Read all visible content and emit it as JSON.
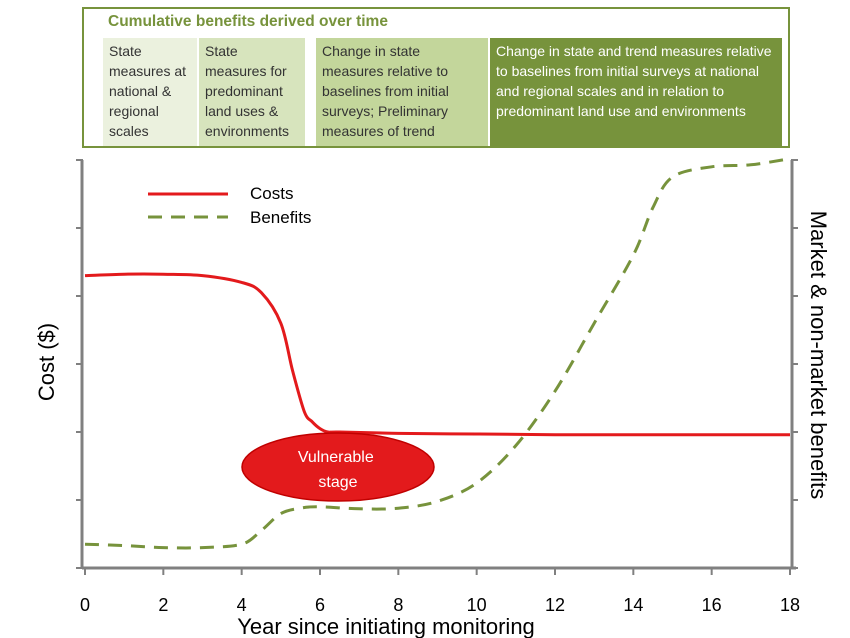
{
  "header": {
    "title": "Cumulative benefits derived over time",
    "stages": [
      "State measures at national & regional scales",
      "State measures for predominant land uses & environments",
      "Change in state measures relative to baselines from initial surveys; Preliminary measures of trend",
      "Change in state and trend measures relative to baselines from initial surveys at national and regional scales and in relation to predominant land use and environments"
    ]
  },
  "chart_data": {
    "type": "line",
    "xlabel": "Year since initiating monitoring",
    "ylabel_left": "Cost ($)",
    "ylabel_right": "Market & non-market benefits",
    "xlim": [
      0,
      18
    ],
    "ylim": [
      0,
      6
    ],
    "x_ticks": [
      0,
      2,
      4,
      6,
      8,
      10,
      12,
      14,
      16,
      18
    ],
    "grid": false,
    "legend_position": "top-left",
    "series": [
      {
        "name": "Costs",
        "style": "solid",
        "color": "#e31a1c",
        "x": [
          0,
          1,
          2,
          3,
          4,
          4.5,
          5,
          5.3,
          5.6,
          5.8,
          6,
          6.2,
          6.5,
          8,
          10,
          12,
          14,
          16,
          18
        ],
        "y": [
          4.3,
          4.32,
          4.32,
          4.3,
          4.2,
          4.05,
          3.6,
          2.9,
          2.3,
          2.15,
          2.05,
          2.0,
          2.0,
          1.98,
          1.97,
          1.96,
          1.96,
          1.96,
          1.96
        ]
      },
      {
        "name": "Benefits",
        "style": "dashed",
        "color": "#77933c",
        "x": [
          0,
          1,
          2,
          3,
          4,
          4.5,
          5,
          5.5,
          6,
          7,
          8,
          9,
          10,
          11,
          12,
          13,
          14,
          14.5,
          15,
          16,
          17,
          18
        ],
        "y": [
          0.35,
          0.33,
          0.3,
          0.3,
          0.35,
          0.55,
          0.8,
          0.88,
          0.9,
          0.87,
          0.88,
          0.98,
          1.25,
          1.8,
          2.6,
          3.6,
          4.6,
          5.3,
          5.75,
          5.9,
          5.93,
          6.02
        ]
      }
    ],
    "annotations": [
      {
        "text": "Vulnerable stage",
        "x": 6.4,
        "y": 1.35,
        "color": "#e31a1c"
      }
    ]
  }
}
